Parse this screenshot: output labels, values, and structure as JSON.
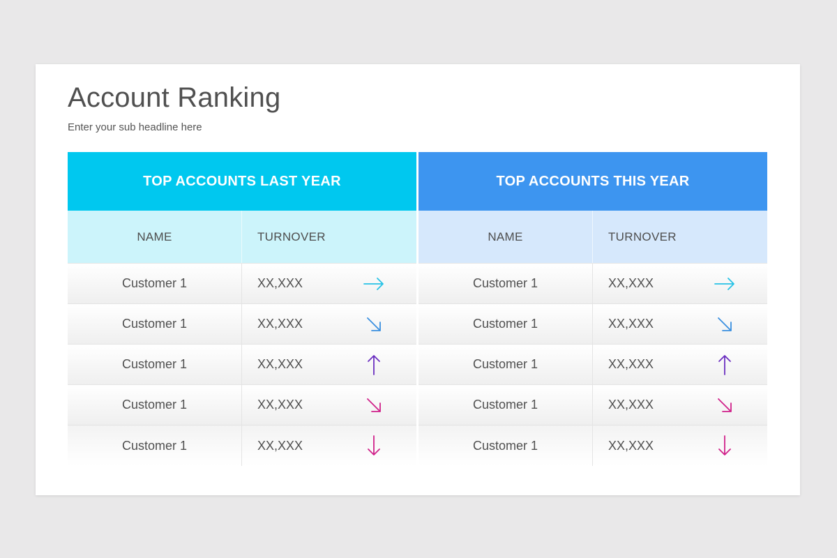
{
  "slide": {
    "title": "Account Ranking",
    "subtitle": "Enter your sub headline here"
  },
  "colors": {
    "background": "#e9e8e9",
    "left_header": "#00c8ef",
    "left_subheader": "#ccf4fb",
    "right_header": "#3d95f0",
    "right_subheader": "#d6e8fc",
    "arrow_cyan": "#26c2e6",
    "arrow_blue": "#3a8fe0",
    "arrow_purple": "#6b2fc0",
    "arrow_magenta": "#d0218a"
  },
  "tables": [
    {
      "header": "TOP ACCOUNTS LAST YEAR",
      "col_name": "NAME",
      "col_turnover": "TURNOVER",
      "rows": [
        {
          "name": "Customer 1",
          "turnover": "XX,XXX",
          "trend": "right",
          "trend_icon": "arrow-right-icon"
        },
        {
          "name": "Customer 1",
          "turnover": "XX,XXX",
          "trend": "down-right",
          "trend_icon": "arrow-down-right-icon"
        },
        {
          "name": "Customer 1",
          "turnover": "XX,XXX",
          "trend": "up",
          "trend_icon": "arrow-up-icon"
        },
        {
          "name": "Customer 1",
          "turnover": "XX,XXX",
          "trend": "down-right",
          "trend_icon": "arrow-down-right-icon"
        },
        {
          "name": "Customer 1",
          "turnover": "XX,XXX",
          "trend": "down",
          "trend_icon": "arrow-down-icon"
        }
      ]
    },
    {
      "header": "TOP ACCOUNTS THIS YEAR",
      "col_name": "NAME",
      "col_turnover": "TURNOVER",
      "rows": [
        {
          "name": "Customer 1",
          "turnover": "XX,XXX",
          "trend": "right",
          "trend_icon": "arrow-right-icon"
        },
        {
          "name": "Customer 1",
          "turnover": "XX,XXX",
          "trend": "down-right",
          "trend_icon": "arrow-down-right-icon"
        },
        {
          "name": "Customer 1",
          "turnover": "XX,XXX",
          "trend": "up",
          "trend_icon": "arrow-up-icon"
        },
        {
          "name": "Customer 1",
          "turnover": "XX,XXX",
          "trend": "down-right",
          "trend_icon": "arrow-down-right-icon"
        },
        {
          "name": "Customer 1",
          "turnover": "XX,XXX",
          "trend": "down",
          "trend_icon": "arrow-down-icon"
        }
      ]
    }
  ]
}
